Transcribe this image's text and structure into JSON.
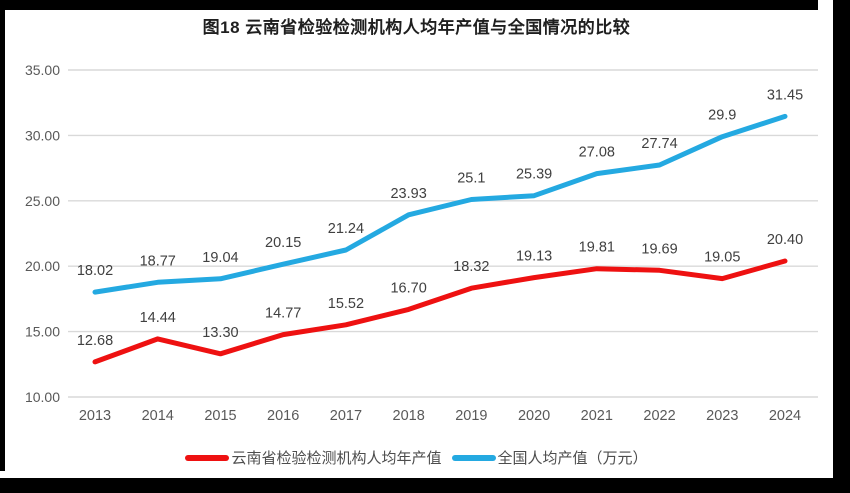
{
  "chart_data": {
    "type": "line",
    "title": "图18 云南省检验检测机构人均年产值与全国情况的比较",
    "categories": [
      "2013",
      "2014",
      "2015",
      "2016",
      "2017",
      "2018",
      "2019",
      "2020",
      "2021",
      "2022",
      "2023",
      "2024"
    ],
    "series": [
      {
        "key": "yunnan",
        "name": "云南省检验检测机构人均年产值",
        "color": "#EE1111",
        "values": [
          12.68,
          14.44,
          13.3,
          14.77,
          15.52,
          16.7,
          18.32,
          19.13,
          19.81,
          19.69,
          19.05,
          20.4
        ],
        "labels": [
          "12.68",
          "14.44",
          "13.30",
          "14.77",
          "15.52",
          "16.70",
          "18.32",
          "19.13",
          "19.81",
          "19.69",
          "19.05",
          "20.40"
        ]
      },
      {
        "key": "national",
        "name": "全国人均产值（万元）",
        "color": "#24A9E1",
        "values": [
          18.02,
          18.77,
          19.04,
          20.15,
          21.24,
          23.93,
          25.1,
          25.39,
          27.08,
          27.74,
          29.9,
          31.45
        ],
        "labels": [
          "18.02",
          "18.77",
          "19.04",
          "20.15",
          "21.24",
          "23.93",
          "25.1",
          "25.39",
          "27.08",
          "27.74",
          "29.9",
          "31.45"
        ]
      }
    ],
    "xlabel": "",
    "ylabel": "",
    "ylim": [
      10,
      35
    ],
    "yticks": [
      {
        "value": 35,
        "label": "35.00"
      },
      {
        "value": 30,
        "label": "30.00"
      },
      {
        "value": 25,
        "label": "25.00"
      },
      {
        "value": 20,
        "label": "20.00"
      },
      {
        "value": 15,
        "label": "15.00"
      },
      {
        "value": 10,
        "label": "10.00"
      }
    ],
    "grid": true,
    "legend_position": "bottom"
  },
  "colors": {
    "series_yunnan": "#EE1111",
    "series_national": "#24A9E1",
    "gridline": "#D9D9D9",
    "axis_text": "#595959",
    "data_label_text": "#404040",
    "frame": "#000000"
  }
}
